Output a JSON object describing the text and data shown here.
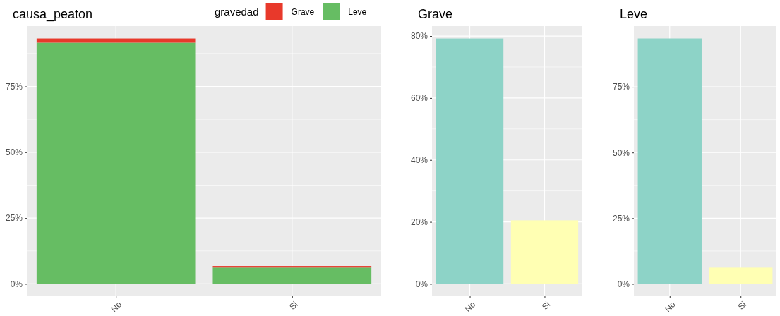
{
  "chart_data": [
    {
      "type": "bar",
      "title": "causa_peaton",
      "legend_title": "gravedad",
      "categories": [
        "No",
        "Si"
      ],
      "stacked": true,
      "legend": "top right",
      "grid": true,
      "series": [
        {
          "name": "Leve",
          "color": "#66bd63",
          "values": [
            91.6,
            6.2
          ]
        },
        {
          "name": "Grave",
          "color": "#e8392b",
          "values": [
            1.6,
            0.6
          ]
        }
      ],
      "ylim": [
        -4.7,
        97.9
      ],
      "yticks": [
        {
          "value": 0,
          "label": "0%"
        },
        {
          "value": 25,
          "label": "25%"
        },
        {
          "value": 50,
          "label": "50%"
        },
        {
          "value": 75,
          "label": "75%"
        }
      ]
    },
    {
      "type": "bar",
      "title": "Grave",
      "categories": [
        "No",
        "Si"
      ],
      "values": [
        79.2,
        20.5
      ],
      "colors": [
        "#8dd3c7",
        "#ffffb3"
      ],
      "grid": true,
      "ylim": [
        -4,
        83.2
      ],
      "yticks": [
        {
          "value": 0,
          "label": "0%"
        },
        {
          "value": 20,
          "label": "20%"
        },
        {
          "value": 40,
          "label": "40%"
        },
        {
          "value": 60,
          "label": "60%"
        },
        {
          "value": 80,
          "label": "80%"
        }
      ]
    },
    {
      "type": "bar",
      "title": "Leve",
      "categories": [
        "No",
        "Si"
      ],
      "values": [
        93.4,
        6.2
      ],
      "colors": [
        "#8dd3c7",
        "#ffffb3"
      ],
      "grid": true,
      "ylim": [
        -4.7,
        98.1
      ],
      "yticks": [
        {
          "value": 0,
          "label": "0%"
        },
        {
          "value": 25,
          "label": "25%"
        },
        {
          "value": 50,
          "label": "50%"
        },
        {
          "value": 75,
          "label": "75%"
        }
      ]
    }
  ]
}
